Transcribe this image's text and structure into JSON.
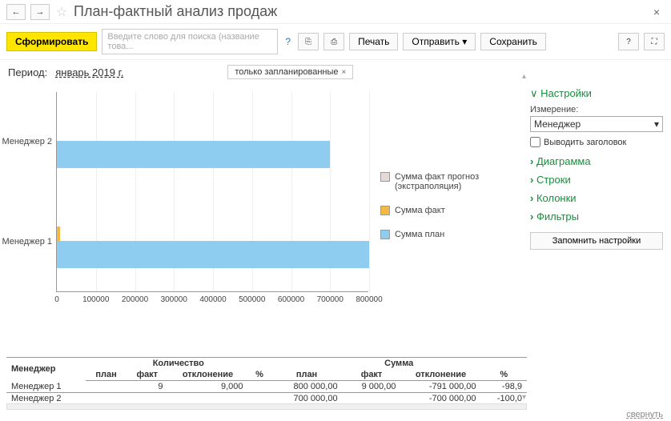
{
  "title": "План-фактный анализ продаж",
  "toolbar": {
    "form": "Сформировать",
    "search_placeholder": "Введите слово для поиска (название това...",
    "print": "Печать",
    "send": "Отправить",
    "save": "Сохранить"
  },
  "period": {
    "label": "Период:",
    "value": "январь 2019 г."
  },
  "filter_tag": "только запланированные",
  "chart": {
    "type": "bar-horizontal",
    "xlim": [
      0,
      800000
    ],
    "xtick_step": 100000,
    "xlabels": [
      "0",
      "100000",
      "200000",
      "300000",
      "400000",
      "500000",
      "600000",
      "700000",
      "800000"
    ],
    "categories": [
      "Менеджер 2",
      "Менеджер 1"
    ],
    "series": [
      {
        "name": "Сумма факт прогноз (экстраполяция)",
        "color": "#e8d9d9",
        "values": [
          0,
          0
        ]
      },
      {
        "name": "Сумма факт",
        "color": "#f5b942",
        "values": [
          0,
          9000
        ]
      },
      {
        "name": "Сумма план",
        "color": "#8fcdf0",
        "values": [
          700000,
          800000
        ]
      }
    ],
    "bg": "#ffffff",
    "grid": "#eeeeee",
    "axis": "#999999",
    "cat_fontsize": 11,
    "tick_fontsize": 10
  },
  "sidebar": {
    "title": "Настройки",
    "dim_label": "Измерение:",
    "dim_value": "Менеджер",
    "show_header": "Выводить заголовок",
    "items": [
      "Диаграмма",
      "Строки",
      "Колонки",
      "Фильтры"
    ],
    "remember": "Запомнить настройки"
  },
  "table": {
    "columns": [
      "Менеджер",
      "план",
      "факт",
      "отклонение",
      "%",
      "план",
      "факт",
      "отклонение",
      "%"
    ],
    "group_headers": [
      "",
      "Количество",
      "",
      "",
      "",
      "Сумма",
      "",
      "",
      ""
    ],
    "groups": [
      {
        "label": "Количество",
        "span": 4
      },
      {
        "label": "Сумма",
        "span": 4
      }
    ],
    "rows": [
      [
        "Менеджер 1",
        "",
        "9",
        "9,000",
        "",
        "800 000,00",
        "9 000,00",
        "-791 000,00",
        "-98,9"
      ],
      [
        "Менеджер 2",
        "",
        "",
        "",
        "",
        "700 000,00",
        "",
        "-700 000,00",
        "-100,0"
      ]
    ]
  },
  "footer": "свернуть"
}
